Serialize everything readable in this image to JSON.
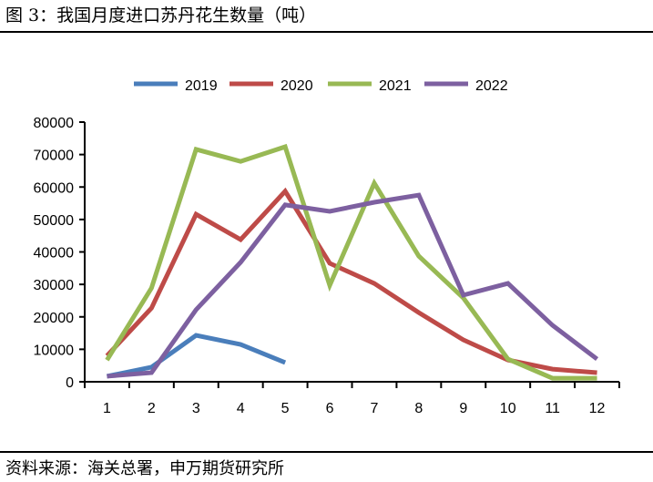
{
  "title": "图 3：我国月度进口苏丹花生数量（吨）",
  "source": "资料来源：海关总署，申万期货研究所",
  "chart_data": {
    "type": "line",
    "categories": [
      "1",
      "2",
      "3",
      "4",
      "5",
      "6",
      "7",
      "8",
      "9",
      "10",
      "11",
      "12"
    ],
    "ylim": [
      0,
      80000
    ],
    "yticks": [
      "0",
      "10000",
      "20000",
      "30000",
      "40000",
      "50000",
      "60000",
      "70000",
      "80000"
    ],
    "grid": false,
    "legend": "top",
    "series": [
      {
        "name": "2019",
        "color": "#4a7ebb",
        "values": [
          1700,
          4500,
          14300,
          11500,
          5900,
          null,
          null,
          null,
          null,
          null,
          null,
          null
        ]
      },
      {
        "name": "2020",
        "color": "#be4b48",
        "values": [
          8000,
          22700,
          51600,
          43800,
          58700,
          36500,
          30300,
          21300,
          12900,
          6700,
          3900,
          2800
        ]
      },
      {
        "name": "2021",
        "color": "#98b954",
        "values": [
          6700,
          28900,
          71600,
          67900,
          72400,
          29700,
          61200,
          38700,
          25800,
          7000,
          1100,
          1100
        ]
      },
      {
        "name": "2022",
        "color": "#7d60a0",
        "values": [
          1700,
          2800,
          22200,
          36800,
          54500,
          52500,
          55300,
          57500,
          26700,
          30300,
          17400,
          7000
        ]
      }
    ]
  }
}
